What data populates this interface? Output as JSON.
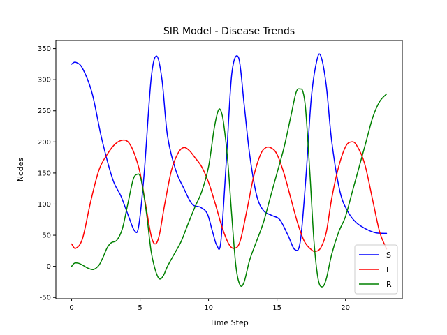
{
  "chart_data": {
    "type": "line",
    "title": "SIR Model - Disease Trends",
    "xlabel": "Time Step",
    "ylabel": "Nodes",
    "xlim": [
      -1.15,
      24.15
    ],
    "ylim": [
      -52,
      363
    ],
    "xticks": [
      0,
      5,
      10,
      15,
      20
    ],
    "yticks": [
      -50,
      0,
      50,
      100,
      150,
      200,
      250,
      300,
      350
    ],
    "grid": false,
    "legend_position": "bottom-right",
    "series": [
      {
        "name": "S",
        "color": "#0000ff",
        "x": [
          0,
          0.3,
          0.8,
          1.5,
          2.2,
          3.0,
          3.6,
          4.2,
          4.6,
          4.9,
          5.3,
          5.8,
          6.2,
          6.6,
          7.0,
          7.6,
          8.2,
          8.8,
          9.4,
          9.9,
          10.3,
          10.6,
          10.9,
          11.3,
          11.7,
          12.2,
          12.6,
          13.0,
          13.5,
          14.0,
          14.6,
          15.2,
          15.8,
          16.3,
          16.7,
          17.1,
          17.5,
          17.9,
          18.2,
          18.6,
          19.0,
          19.6,
          20.2,
          20.8,
          21.5,
          22.2,
          23.0
        ],
        "values": [
          325,
          328,
          318,
          278,
          205,
          140,
          113,
          78,
          57,
          65,
          150,
          300,
          338,
          300,
          210,
          155,
          125,
          100,
          95,
          85,
          55,
          34,
          40,
          170,
          310,
          335,
          260,
          180,
          115,
          90,
          82,
          75,
          50,
          27,
          40,
          140,
          270,
          330,
          338,
          290,
          200,
          120,
          87,
          70,
          60,
          54,
          53
        ]
      },
      {
        "name": "I",
        "color": "#ff0000",
        "x": [
          0,
          0.3,
          0.8,
          1.4,
          2.0,
          2.6,
          3.2,
          3.8,
          4.2,
          4.6,
          5.0,
          5.4,
          5.8,
          6.1,
          6.4,
          6.8,
          7.3,
          7.8,
          8.2,
          8.6,
          9.0,
          9.5,
          10.0,
          10.5,
          11.0,
          11.5,
          11.9,
          12.3,
          12.8,
          13.3,
          13.8,
          14.2,
          14.6,
          15.0,
          15.5,
          16.0,
          16.5,
          17.0,
          17.5,
          17.8,
          18.2,
          18.6,
          19.0,
          19.5,
          20.0,
          20.4,
          20.8,
          21.4,
          22.0,
          22.5,
          23.0
        ],
        "values": [
          36,
          29,
          45,
          105,
          155,
          180,
          197,
          203,
          198,
          180,
          150,
          100,
          50,
          36,
          50,
          100,
          155,
          183,
          191,
          186,
          175,
          160,
          135,
          100,
          62,
          35,
          29,
          40,
          90,
          145,
          180,
          191,
          190,
          180,
          150,
          110,
          70,
          40,
          27,
          24,
          30,
          55,
          110,
          160,
          192,
          200,
          195,
          165,
          105,
          55,
          28
        ]
      },
      {
        "name": "R",
        "color": "#008000",
        "x": [
          0,
          0.2,
          0.5,
          0.8,
          1.2,
          1.6,
          2.0,
          2.3,
          2.6,
          2.9,
          3.3,
          3.7,
          4.1,
          4.5,
          4.8,
          5.0,
          5.2,
          5.5,
          5.8,
          6.1,
          6.4,
          6.7,
          7.0,
          7.5,
          8.0,
          8.5,
          9.0,
          9.5,
          10.0,
          10.4,
          10.7,
          10.9,
          11.1,
          11.4,
          11.7,
          12.0,
          12.3,
          12.6,
          13.0,
          13.5,
          14.0,
          14.5,
          15.0,
          15.5,
          16.0,
          16.4,
          16.7,
          16.9,
          17.1,
          17.4,
          17.7,
          18.0,
          18.3,
          18.6,
          19.0,
          19.5,
          20.0,
          20.5,
          21.0,
          21.5,
          22.0,
          22.5,
          23.0
        ],
        "values": [
          0,
          5,
          5,
          2,
          -3,
          -5,
          2,
          15,
          30,
          38,
          42,
          60,
          100,
          140,
          148,
          145,
          125,
          80,
          25,
          -5,
          -20,
          -15,
          0,
          20,
          40,
          68,
          95,
          120,
          160,
          220,
          250,
          250,
          230,
          170,
          80,
          0,
          -30,
          -25,
          10,
          40,
          70,
          110,
          150,
          190,
          240,
          280,
          285,
          280,
          250,
          150,
          40,
          -20,
          -33,
          -20,
          20,
          55,
          80,
          120,
          160,
          200,
          240,
          265,
          277
        ]
      }
    ]
  }
}
